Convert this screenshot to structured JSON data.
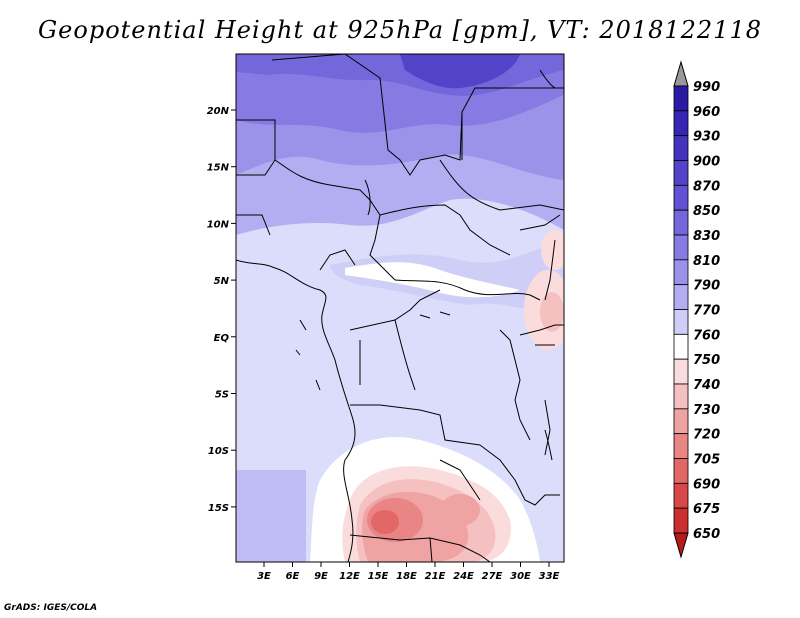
{
  "title": "Geopotential Height at 925hPa [gpm], VT: 2018122118",
  "credit": "GrADS: IGES/COLA",
  "axes": {
    "x_ticks": [
      "3E",
      "6E",
      "9E",
      "12E",
      "15E",
      "18E",
      "21E",
      "24E",
      "27E",
      "30E",
      "33E"
    ],
    "y_ticks": [
      "20N",
      "15N",
      "10N",
      "5N",
      "EQ",
      "5S",
      "10S",
      "15S"
    ]
  },
  "colorbar": {
    "levels": [
      "990",
      "960",
      "930",
      "900",
      "870",
      "850",
      "830",
      "810",
      "790",
      "770",
      "760",
      "750",
      "740",
      "730",
      "720",
      "705",
      "690",
      "675",
      "650"
    ],
    "colors": [
      "#2a1aa6",
      "#3526b4",
      "#4333bf",
      "#5243c9",
      "#6052d2",
      "#7466db",
      "#877be3",
      "#9b92ea",
      "#b3aef1",
      "#cecef7",
      "#ffffff",
      "#fbdcdc",
      "#f5c0c0",
      "#efa3a3",
      "#e98585",
      "#e26767",
      "#d94848",
      "#cc2f2f",
      "#b81a1a"
    ]
  },
  "chart_data": {
    "type": "heatmap",
    "title": "Geopotential Height at 925hPa [gpm], VT: 2018122118",
    "variable": "Geopotential Height at 925hPa",
    "units": "gpm",
    "valid_time": "2018122118",
    "x_ticks": [
      "3E",
      "6E",
      "9E",
      "12E",
      "15E",
      "18E",
      "21E",
      "24E",
      "27E",
      "30E",
      "33E"
    ],
    "y_ticks": [
      "20N",
      "15N",
      "10N",
      "5N",
      "EQ",
      "5S",
      "10S",
      "15S"
    ],
    "colorbar_levels": [
      990,
      960,
      930,
      900,
      870,
      850,
      830,
      810,
      790,
      770,
      760,
      750,
      740,
      730,
      720,
      705,
      690,
      675,
      650
    ]
  }
}
